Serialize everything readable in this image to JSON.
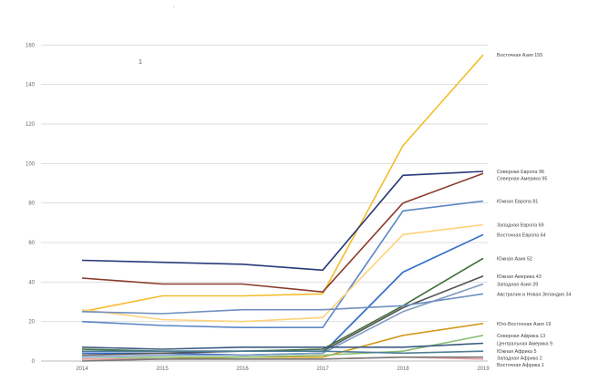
{
  "chart_data": {
    "type": "line",
    "title": "",
    "xlabel": "",
    "ylabel": "",
    "categories": [
      "2014",
      "2015",
      "2016",
      "2017",
      "2018",
      "2019"
    ],
    "ylim": [
      0,
      180
    ],
    "yticks": [
      0,
      20,
      40,
      60,
      80,
      100,
      120,
      140,
      160
    ],
    "grid": true,
    "legend": "none",
    "stray_marks": [
      ".",
      "1"
    ],
    "series": [
      {
        "name": "Восточная Азия 155",
        "color": "#f2bd2c",
        "values": [
          25,
          33,
          33,
          34,
          109,
          155
        ]
      },
      {
        "name": "Северная Европа 96",
        "color": "#283a78",
        "values": [
          51,
          50,
          49,
          46,
          94,
          96
        ]
      },
      {
        "name": "Северная Америка 95",
        "color": "#8a3b2b",
        "values": [
          42,
          39,
          39,
          35,
          80,
          95
        ]
      },
      {
        "name": "Южная Европа 81",
        "color": "#5b86c4",
        "values": [
          20,
          18,
          17,
          17,
          76,
          81
        ]
      },
      {
        "name": "Западная Европа 69",
        "color": "#ffd27a",
        "values": [
          26,
          21,
          20,
          22,
          64,
          69
        ]
      },
      {
        "name": "Восточная Европа 64",
        "color": "#2f6bc9",
        "values": [
          4,
          4,
          3,
          4,
          45,
          64
        ]
      },
      {
        "name": "Южная Азия 52",
        "color": "#3f6e3a",
        "values": [
          6,
          5,
          5,
          6,
          28,
          52
        ]
      },
      {
        "name": "Южная Америка 43",
        "color": "#555555",
        "values": [
          3,
          4,
          5,
          5,
          27,
          43
        ]
      },
      {
        "name": "Западная Азия 39",
        "color": "#7d9bc1",
        "values": [
          2,
          3,
          3,
          4,
          25,
          39
        ]
      },
      {
        "name": "Австралия и Новая Зеландия 34",
        "color": "#6f8fbf",
        "values": [
          25,
          24,
          26,
          26,
          28,
          34
        ]
      },
      {
        "name": "Юго-Восточная Азия 19",
        "color": "#d39a1d",
        "values": [
          1,
          1,
          2,
          2,
          13,
          19
        ]
      },
      {
        "name": "Северная Африка 13",
        "color": "#8bbf75",
        "values": [
          1,
          2,
          2,
          3,
          5,
          13
        ]
      },
      {
        "name": "Центральная Америка 9",
        "color": "#3b5b82",
        "values": [
          7,
          6,
          7,
          7,
          7,
          9
        ]
      },
      {
        "name": "Южная Африка 5",
        "color": "#4d7e96",
        "values": [
          5,
          5,
          5,
          5,
          4,
          5
        ]
      },
      {
        "name": "Восточная Африка 1",
        "color": "#e8a0a0",
        "values": [
          1,
          1,
          1,
          1,
          2,
          1
        ]
      },
      {
        "name": "Западная Африка 2",
        "color": "#7a7a7a",
        "values": [
          0,
          1,
          1,
          1,
          2,
          2
        ]
      }
    ]
  }
}
